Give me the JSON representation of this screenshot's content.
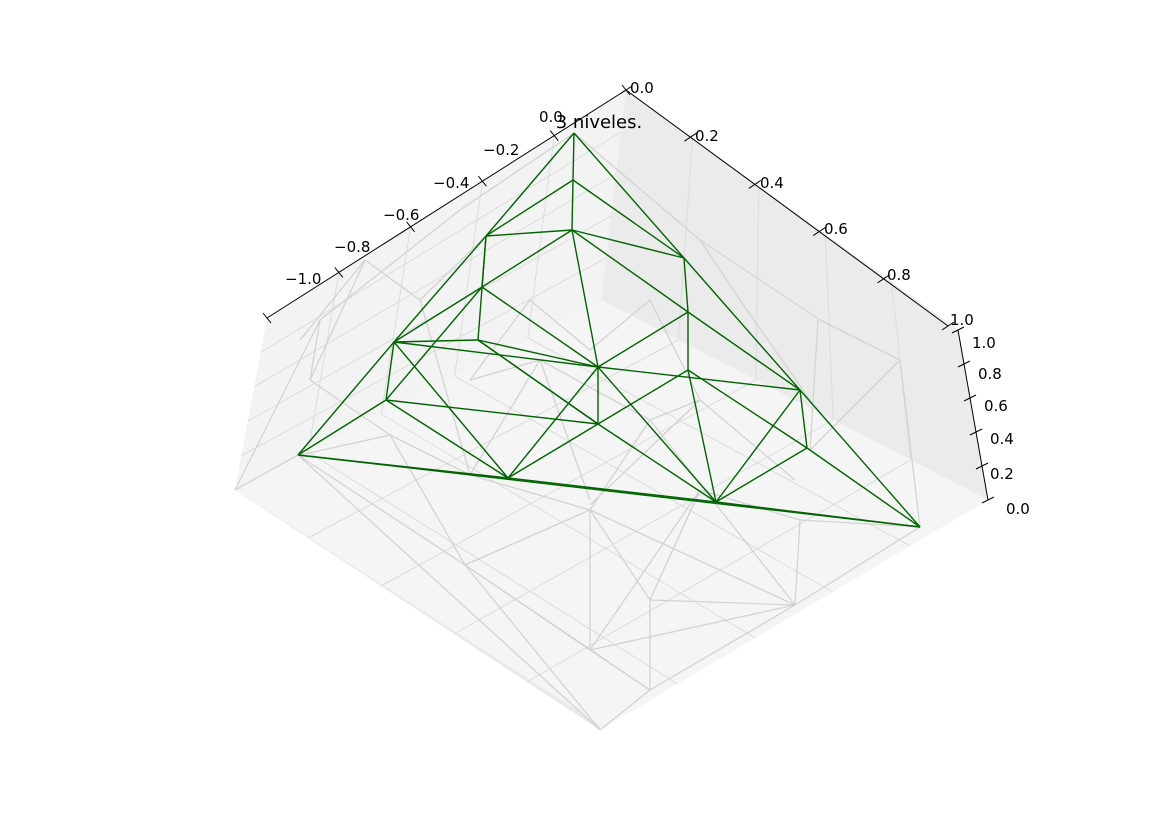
{
  "chart_data": {
    "type": "line",
    "projection": "3d",
    "title": "3 niveles.",
    "xlabel": "",
    "ylabel": "",
    "zlabel": "",
    "xlim": [
      -1.0,
      0.0
    ],
    "ylim": [
      0.0,
      1.0
    ],
    "zlim": [
      0.0,
      1.0
    ],
    "grid": true,
    "panes": true,
    "x_ticks": [
      "−1.0",
      "−0.8",
      "−0.6",
      "−0.4",
      "−0.2",
      "0.0"
    ],
    "y_ticks": [
      "0.0",
      "0.2",
      "0.4",
      "0.6",
      "0.8",
      "1.0"
    ],
    "z_ticks": [
      "0.0",
      "0.2",
      "0.4",
      "0.6",
      "0.8",
      "1.0"
    ],
    "series": [
      {
        "color": "#006400",
        "style": "wireframe"
      },
      {
        "color": "#d3d3d3",
        "style": "wireframe"
      }
    ]
  }
}
